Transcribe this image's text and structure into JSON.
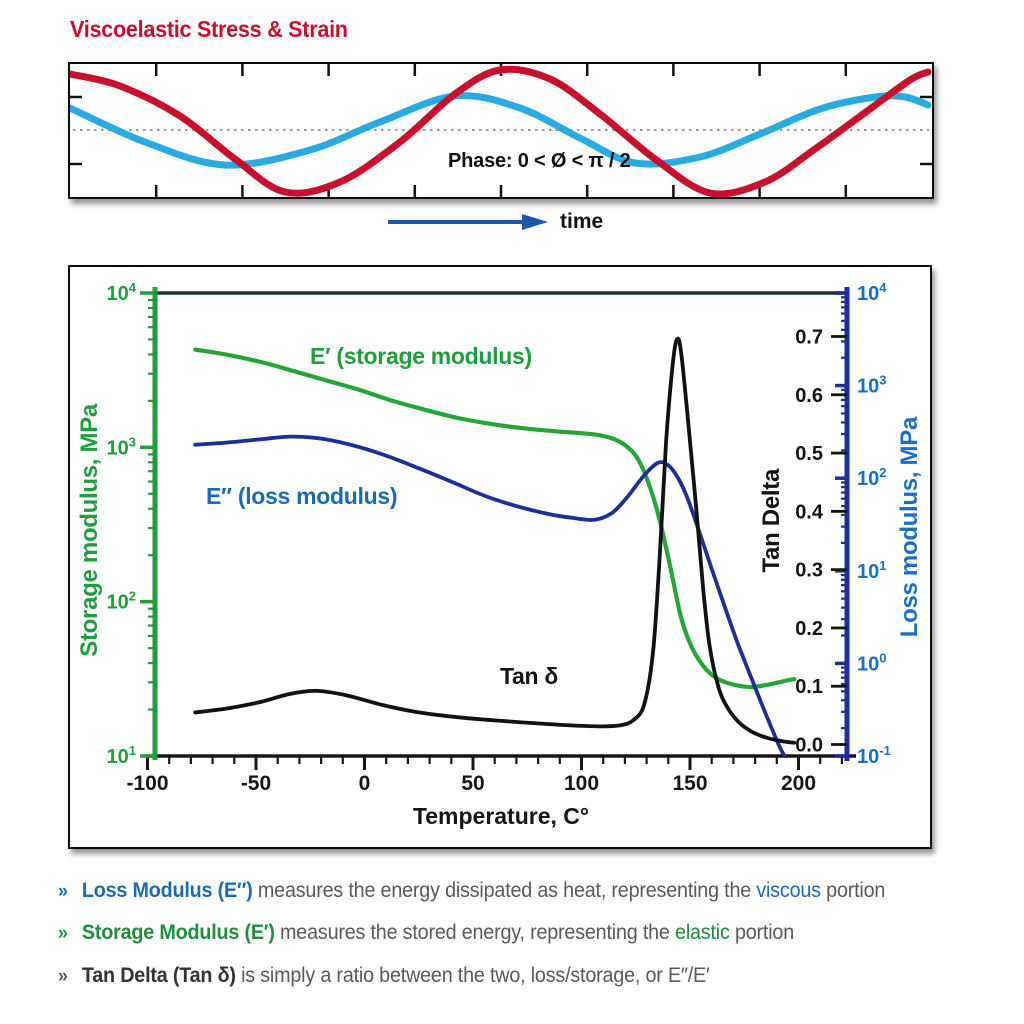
{
  "title": "Viscoelastic Stress & Strain",
  "wave_panel": {
    "phase_label": "Phase: 0 < Ø < π / 2",
    "time_label": "time",
    "midline_color": "#9b9b9b",
    "tick_color": "#111111",
    "arrow_color": "#1d57b0",
    "waves": [
      {
        "name": "stress-wave",
        "color": "#c8102e",
        "stroke": 7,
        "points": [
          [
            0,
            10
          ],
          [
            50,
            22
          ],
          [
            110,
            52
          ],
          [
            165,
            95
          ],
          [
            215,
            128
          ],
          [
            270,
            118
          ],
          [
            330,
            78
          ],
          [
            385,
            30
          ],
          [
            430,
            6
          ],
          [
            480,
            15
          ],
          [
            530,
            50
          ],
          [
            585,
            95
          ],
          [
            640,
            129
          ],
          [
            695,
            118
          ],
          [
            745,
            85
          ],
          [
            800,
            45
          ],
          [
            840,
            16
          ],
          [
            858,
            8
          ]
        ]
      },
      {
        "name": "strain-wave",
        "color": "#29abe2",
        "stroke": 7,
        "points": [
          [
            0,
            44
          ],
          [
            75,
            78
          ],
          [
            155,
            101
          ],
          [
            240,
            86
          ],
          [
            310,
            58
          ],
          [
            385,
            32
          ],
          [
            450,
            44
          ],
          [
            510,
            74
          ],
          [
            565,
            99
          ],
          [
            630,
            93
          ],
          [
            690,
            70
          ],
          [
            750,
            45
          ],
          [
            805,
            33
          ],
          [
            835,
            33
          ],
          [
            858,
            41
          ]
        ]
      }
    ]
  },
  "chart_data": {
    "type": "line",
    "xlabel": "Temperature, C°",
    "x_range": [
      -100,
      222
    ],
    "x_ticks": [
      -100,
      -50,
      0,
      50,
      100,
      150,
      200
    ],
    "x_minor_step": 10,
    "axis_color": "#161616",
    "top_frame_color": "#1c3531",
    "left_axis": {
      "label": "Storage modulus, MPa",
      "scale": "log",
      "exp_range": [
        1,
        4
      ],
      "color": "#1f9e3d"
    },
    "right_log_axis": {
      "label": "Loss modulus, MPa",
      "scale": "log",
      "exp_range": [
        -1,
        4
      ],
      "axis_color": "#1d2f96",
      "text_color": "#1a6fc4"
    },
    "tan_axis": {
      "label": "Tan Delta",
      "scale": "linear",
      "tick_labels": [
        "0.0",
        "0.1",
        "0.2",
        "0.3",
        "0.4",
        "0.5",
        "0.6",
        "0.7"
      ],
      "tick_values": [
        0.0,
        0.1,
        0.2,
        0.3,
        0.4,
        0.5,
        0.6,
        0.7
      ],
      "color": "#141414"
    },
    "series": [
      {
        "name": "E′ (storage modulus)",
        "axis": "left",
        "color": "#24a637",
        "stroke": 4.2,
        "points": [
          [
            -78,
            4300
          ],
          [
            -62,
            3950
          ],
          [
            -47,
            3550
          ],
          [
            -32,
            3100
          ],
          [
            -17,
            2700
          ],
          [
            -2,
            2350
          ],
          [
            13,
            2000
          ],
          [
            28,
            1750
          ],
          [
            43,
            1550
          ],
          [
            58,
            1420
          ],
          [
            73,
            1330
          ],
          [
            88,
            1270
          ],
          [
            100,
            1235
          ],
          [
            108,
            1200
          ],
          [
            115,
            1130
          ],
          [
            121,
            1010
          ],
          [
            126,
            840
          ],
          [
            131,
            580
          ],
          [
            136,
            340
          ],
          [
            141,
            165
          ],
          [
            146,
            78
          ],
          [
            151,
            50
          ],
          [
            157,
            37
          ],
          [
            163,
            31.5
          ],
          [
            170,
            29
          ],
          [
            178,
            28
          ],
          [
            186,
            29
          ],
          [
            193,
            30.5
          ],
          [
            198,
            31.5
          ]
        ]
      },
      {
        "name": "E″ (loss modulus)",
        "axis": "right_log",
        "color": "#1d2f96",
        "stroke": 3.8,
        "points": [
          [
            -78,
            230
          ],
          [
            -63,
            243
          ],
          [
            -48,
            263
          ],
          [
            -34,
            281
          ],
          [
            -20,
            268
          ],
          [
            -5,
            225
          ],
          [
            10,
            175
          ],
          [
            25,
            128
          ],
          [
            40,
            92
          ],
          [
            55,
            65
          ],
          [
            70,
            50
          ],
          [
            85,
            41
          ],
          [
            97,
            37
          ],
          [
            106,
            35.5
          ],
          [
            114,
            42
          ],
          [
            121,
            62
          ],
          [
            127,
            95
          ],
          [
            132,
            128
          ],
          [
            136,
            149
          ],
          [
            140,
            138
          ],
          [
            144,
            105
          ],
          [
            148,
            68
          ],
          [
            152,
            38
          ],
          [
            156,
            20
          ],
          [
            160,
            10.5
          ],
          [
            164,
            5.6
          ],
          [
            168,
            3
          ],
          [
            172,
            1.65
          ],
          [
            176,
            0.95
          ],
          [
            180,
            0.55
          ],
          [
            184,
            0.32
          ],
          [
            188,
            0.19
          ],
          [
            191,
            0.13
          ],
          [
            193.5,
            0.1
          ]
        ]
      },
      {
        "name": "Tan δ",
        "axis": "tan",
        "color": "#121212",
        "stroke": 3.8,
        "points": [
          [
            -78,
            0.055
          ],
          [
            -63,
            0.062
          ],
          [
            -48,
            0.073
          ],
          [
            -34,
            0.087
          ],
          [
            -22,
            0.092
          ],
          [
            -8,
            0.084
          ],
          [
            8,
            0.068
          ],
          [
            25,
            0.055
          ],
          [
            45,
            0.046
          ],
          [
            65,
            0.04
          ],
          [
            85,
            0.035
          ],
          [
            100,
            0.032
          ],
          [
            110,
            0.031
          ],
          [
            118,
            0.033
          ],
          [
            124,
            0.042
          ],
          [
            129,
            0.07
          ],
          [
            133,
            0.16
          ],
          [
            136,
            0.32
          ],
          [
            139,
            0.52
          ],
          [
            142,
            0.65
          ],
          [
            144,
            0.695
          ],
          [
            146,
            0.67
          ],
          [
            150,
            0.52
          ],
          [
            153,
            0.4
          ],
          [
            156,
            0.27
          ],
          [
            159,
            0.17
          ],
          [
            163,
            0.1
          ],
          [
            167,
            0.065
          ],
          [
            172,
            0.04
          ],
          [
            178,
            0.023
          ],
          [
            185,
            0.012
          ],
          [
            192,
            0.006
          ],
          [
            198,
            0.003
          ]
        ]
      }
    ]
  },
  "bullets": [
    {
      "marker": "»",
      "marker_color": "#1a6ab8",
      "segments": [
        {
          "text": "Loss Modulus (E″) ",
          "color": "#1a6ab8",
          "bold": true
        },
        {
          "text": "measures the energy dissipated as heat, representing the ",
          "color": "#58595b"
        },
        {
          "text": "viscous",
          "color": "#1a6ab8"
        },
        {
          "text": " portion",
          "color": "#58595b"
        }
      ]
    },
    {
      "marker": "»",
      "marker_color": "#1f8c3e",
      "segments": [
        {
          "text": "Storage Modulus (E′) ",
          "color": "#1f8c3e",
          "bold": true
        },
        {
          "text": " measures the stored energy, representing the ",
          "color": "#58595b"
        },
        {
          "text": "elastic",
          "color": "#1f8c3e"
        },
        {
          "text": " portion",
          "color": "#58595b"
        }
      ]
    },
    {
      "marker": "»",
      "marker_color": "#58595b",
      "segments": [
        {
          "text": "Tan Delta (Tan δ) ",
          "color": "#333336",
          "bold": true
        },
        {
          "text": "is simply a ratio between the two, loss/storage, or E″/E′",
          "color": "#58595b"
        }
      ]
    }
  ]
}
